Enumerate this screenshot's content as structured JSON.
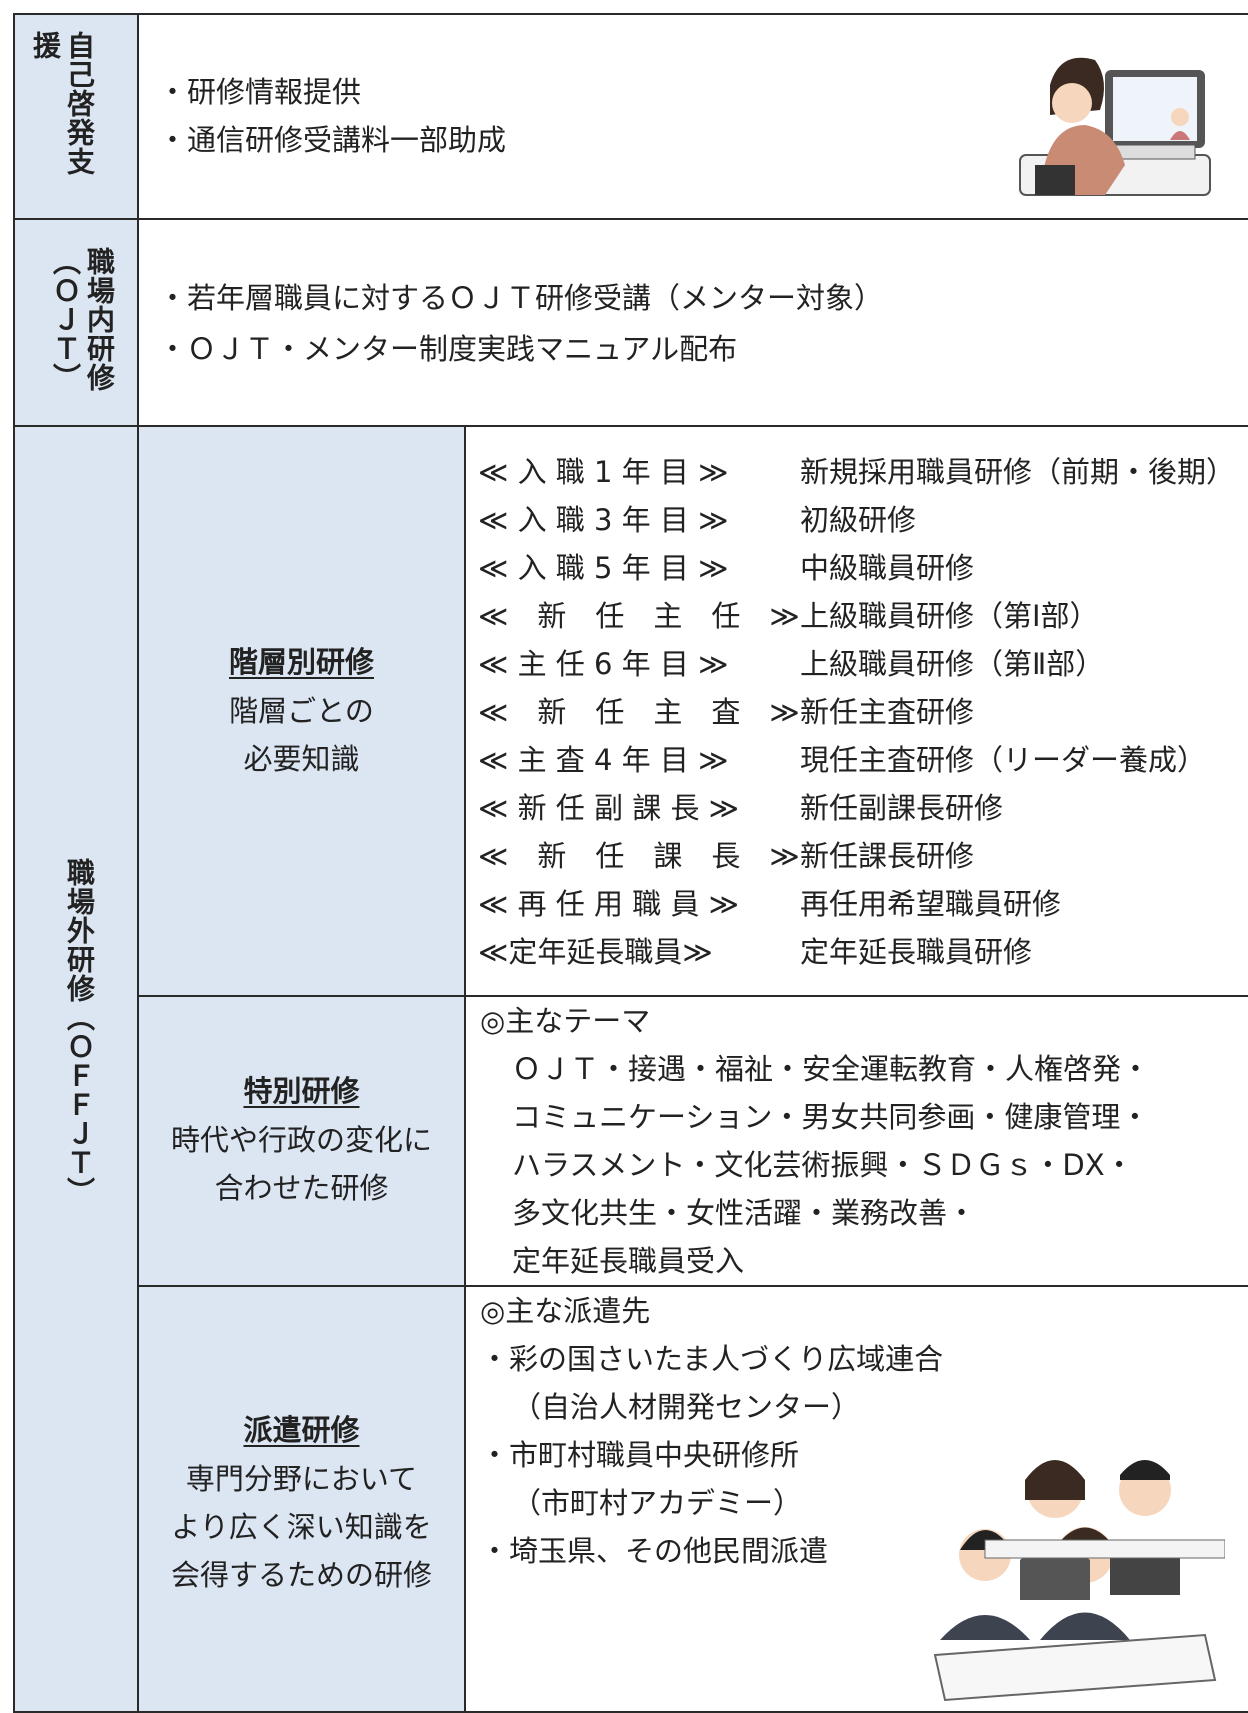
{
  "sections": [
    {
      "label": "自己啓発支援",
      "items": [
        "・研修情報提供",
        "・通信研修受講料一部助成"
      ]
    },
    {
      "label": "職場内研修（ＯＪＴ）",
      "items": [
        "・若年層職員に対するＯＪＴ研修受講（メンター対象）",
        "・ＯＪＴ・メンター制度実践マニュアル配布"
      ]
    },
    {
      "label": "職場外研修（ＯＦＦＪＴ）",
      "subsections": [
        {
          "title": "階層別研修",
          "description": [
            "階層ごとの",
            "必要知識"
          ],
          "rows": [
            [
              "≪ 入 職 1 年 目 ≫",
              "新規採用職員研修（前期・後期）"
            ],
            [
              "≪ 入 職 3 年 目 ≫",
              "初級研修"
            ],
            [
              "≪ 入 職 5 年 目 ≫",
              "中級職員研修"
            ],
            [
              "≪　新　任　主　任　≫",
              "上級職員研修（第Ⅰ部）"
            ],
            [
              "≪ 主 任 6 年 目 ≫",
              "上級職員研修（第Ⅱ部）"
            ],
            [
              "≪　新　任　主　査　≫",
              "新任主査研修"
            ],
            [
              "≪ 主 査 4 年 目 ≫",
              "現任主査研修（リーダー養成）"
            ],
            [
              "≪ 新 任 副 課 長 ≫",
              "新任副課長研修"
            ],
            [
              "≪　新　任　課　長　≫",
              "新任課長研修"
            ],
            [
              "≪ 再 任 用 職 員 ≫",
              "再任用希望職員研修"
            ],
            [
              "≪定年延長職員≫",
              "定年延長職員研修"
            ]
          ]
        },
        {
          "title": "特別研修",
          "description": [
            "時代や行政の変化に",
            "合わせた研修"
          ],
          "lines": [
            "◎主なテーマ",
            "ＯＪＴ・接遇・福祉・安全運転教育・人権啓発・",
            "コミュニケーション・男女共同参画・健康管理・",
            "ハラスメント・文化芸術振興・ＳＤＧｓ・DX・",
            "多文化共生・女性活躍・業務改善・",
            "定年延長職員受入"
          ]
        },
        {
          "title": "派遣研修",
          "description": [
            "専門分野において",
            "より広く深い知識を",
            "会得するための研修"
          ],
          "lines": [
            "◎主な派遣先",
            "・彩の国さいたま人づくり広域連合",
            "（自治人材開発センター）",
            "・市町村職員中央研修所",
            "（市町村アカデミー）",
            "・埼玉県、その他民間派遣"
          ]
        }
      ]
    }
  ]
}
